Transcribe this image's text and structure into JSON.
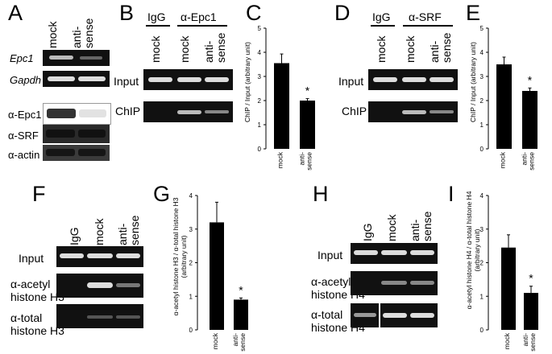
{
  "panels": {
    "A": {
      "label": "A",
      "lanes": [
        "mock",
        "anti-\nsense"
      ],
      "rows": [
        "Epc1",
        "Gapdh",
        "α-Epc1",
        "α-SRF",
        "α-actin"
      ]
    },
    "B": {
      "label": "B",
      "groups": [
        "IgG",
        "α-Epc1"
      ],
      "lanes": [
        "mock",
        "mock",
        "anti-\nsense"
      ],
      "rows": [
        "Input",
        "ChIP"
      ]
    },
    "C": {
      "label": "C"
    },
    "D": {
      "label": "D",
      "groups": [
        "IgG",
        "α-SRF"
      ],
      "lanes": [
        "mock",
        "mock",
        "anti-\nsense"
      ],
      "rows": [
        "Input",
        "ChIP"
      ]
    },
    "E": {
      "label": "E"
    },
    "F": {
      "label": "F",
      "lanes": [
        "IgG",
        "mock",
        "anti-\nsense"
      ],
      "rows": [
        "Input",
        "α-acetyl\nhistone H3",
        "α-total\nhistone H3"
      ]
    },
    "G": {
      "label": "G"
    },
    "H": {
      "label": "H",
      "lanes": [
        "IgG",
        "mock",
        "anti-\nsense"
      ],
      "rows": [
        "Input",
        "α-acetyl\nhistone H4",
        "α-total\nhistone H4"
      ]
    },
    "I": {
      "label": "I"
    }
  },
  "chart_data": [
    {
      "id": "C",
      "type": "bar",
      "categories": [
        "mock",
        "anti-\nsense"
      ],
      "values": [
        3.55,
        2.0
      ],
      "errors": [
        0.38,
        0.08
      ],
      "significance": [
        "",
        "*"
      ],
      "ylabel": "ChIP / Input (arbitrary unit)",
      "ylim": [
        0,
        5
      ],
      "yticks": [
        0,
        1,
        2,
        3,
        4,
        5
      ]
    },
    {
      "id": "E",
      "type": "bar",
      "categories": [
        "mock",
        "anti-\nsense"
      ],
      "values": [
        3.5,
        2.4
      ],
      "errors": [
        0.3,
        0.12
      ],
      "significance": [
        "",
        "*"
      ],
      "ylabel": "ChIP / Input (arbitrary unit)",
      "ylim": [
        0,
        5
      ],
      "yticks": [
        0,
        1,
        2,
        3,
        4,
        5
      ]
    },
    {
      "id": "G",
      "type": "bar",
      "categories": [
        "mock",
        "anti-\nsense"
      ],
      "values": [
        3.2,
        0.9
      ],
      "errors": [
        0.6,
        0.05
      ],
      "significance": [
        "",
        "*"
      ],
      "ylabel": "α-acetyl histone H3 / α-total histone H3\n(arbitrary unit)",
      "ylim": [
        0,
        4
      ],
      "yticks": [
        0,
        1,
        2,
        3,
        4
      ]
    },
    {
      "id": "I",
      "type": "bar",
      "categories": [
        "mock",
        "anti-\nsense"
      ],
      "values": [
        2.45,
        1.1
      ],
      "errors": [
        0.38,
        0.2
      ],
      "significance": [
        "",
        "*"
      ],
      "ylabel": "α-acetyl histone H4 / α-total histone H4\n(arbitrary unit)",
      "ylim": [
        0,
        4
      ],
      "yticks": [
        0,
        1,
        2,
        3,
        4
      ]
    }
  ]
}
